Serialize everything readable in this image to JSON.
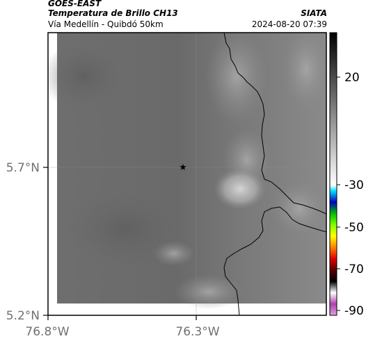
{
  "header": {
    "satellite": "GOES-EAST",
    "product": "Temperatura de Brillo CH13",
    "route": "Vía Medellín - Quibdó 50km",
    "org": "SIATA",
    "datetime": "2024-08-20 07:39"
  },
  "axes": {
    "lat_labels": [
      "5.7°N",
      "5.2°N"
    ],
    "lon_labels": [
      "76.8°W",
      "76.3°W"
    ]
  },
  "colorbar": {
    "ticks": [
      "20",
      "-30",
      "-50",
      "-70",
      "-90"
    ]
  },
  "marker": {
    "symbol": "★"
  },
  "colors": {
    "frame": "#000000",
    "background": "#ffffff"
  }
}
